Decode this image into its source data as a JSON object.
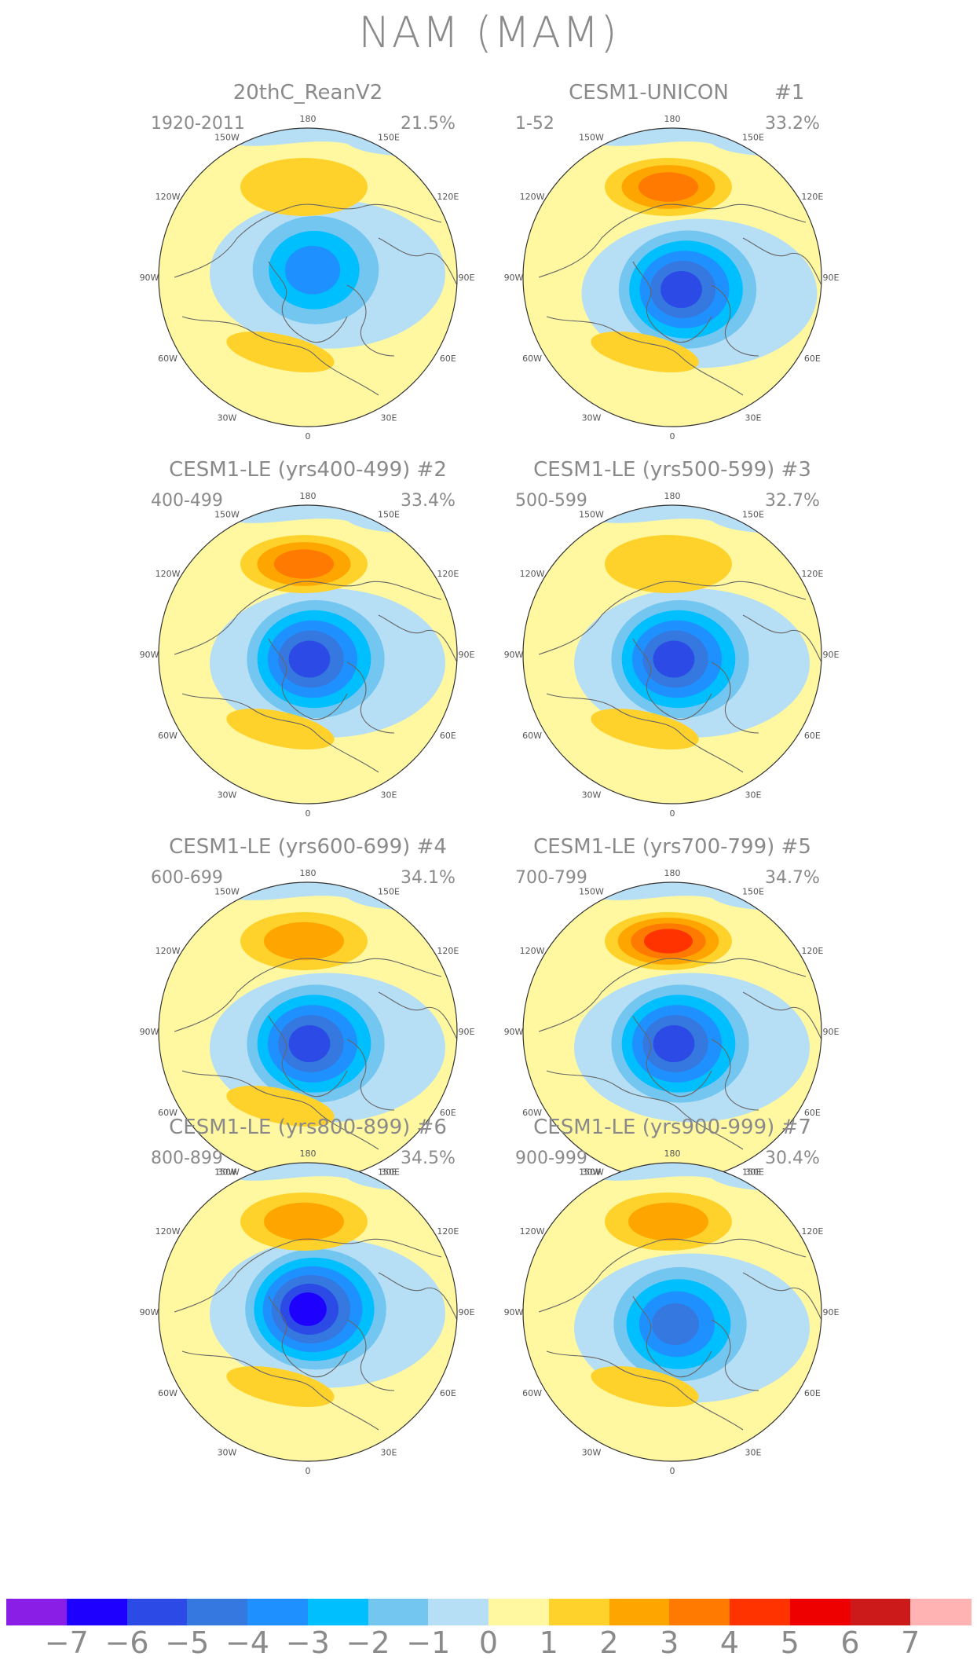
{
  "figure_title": "NAM (MAM)",
  "panels": [
    {
      "title": "20thC_ReanV2",
      "years": "1920-2011",
      "pct": "21.5%",
      "member": "",
      "pattern": {
        "neg_center": [
          0.0,
          -0.18
        ],
        "neg_levels": 3,
        "pos_north_levels": 1,
        "pos_atl_levels": 1
      }
    },
    {
      "title": "CESM1-UNICON",
      "years": "1-52",
      "pct": "33.2%",
      "member": "#1",
      "pattern": {
        "neg_center": [
          0.05,
          -0.05
        ],
        "neg_levels": 5,
        "pos_north_levels": 3,
        "pos_atl_levels": 1
      }
    },
    {
      "title": "CESM1-LE (yrs400-499) #2",
      "years": "400-499",
      "pct": "33.4%",
      "member": "",
      "pattern": {
        "neg_center": [
          0.0,
          -0.1
        ],
        "neg_levels": 5,
        "pos_north_levels": 3,
        "pos_atl_levels": 1
      }
    },
    {
      "title": "CESM1-LE (yrs500-599) #3",
      "years": "500-599",
      "pct": "32.7%",
      "member": "",
      "pattern": {
        "neg_center": [
          0.0,
          -0.1
        ],
        "neg_levels": 5,
        "pos_north_levels": 1,
        "pos_atl_levels": 1
      }
    },
    {
      "title": "CESM1-LE (yrs600-699) #4",
      "years": "600-699",
      "pct": "34.1%",
      "member": "",
      "pattern": {
        "neg_center": [
          0.0,
          -0.05
        ],
        "neg_levels": 5,
        "pos_north_levels": 2,
        "pos_atl_levels": 1
      }
    },
    {
      "title": "CESM1-LE (yrs700-799) #5",
      "years": "700-799",
      "pct": "34.7%",
      "member": "",
      "pattern": {
        "neg_center": [
          0.0,
          -0.05
        ],
        "neg_levels": 5,
        "pos_north_levels": 4,
        "pos_atl_levels": 0
      }
    },
    {
      "title": "CESM1-LE (yrs800-899) #6",
      "years": "800-899",
      "pct": "34.5%",
      "member": "",
      "pattern": {
        "neg_center": [
          0.0,
          -0.15
        ],
        "neg_levels": 6,
        "pos_north_levels": 2,
        "pos_atl_levels": 1
      }
    },
    {
      "title": "CESM1-LE (yrs900-999) #7",
      "years": "900-999",
      "pct": "30.4%",
      "member": "",
      "pattern": {
        "neg_center": [
          0.0,
          -0.05
        ],
        "neg_levels": 4,
        "pos_north_levels": 2,
        "pos_atl_levels": 1
      }
    }
  ],
  "lon_labels": [
    "180",
    "150E",
    "120E",
    "90E",
    "60E",
    "30E",
    "0",
    "30W",
    "60W",
    "90W",
    "120W",
    "150W"
  ],
  "colorbar": {
    "colors": [
      "#8a1ee6",
      "#1e00ff",
      "#2c4ae6",
      "#3478e0",
      "#1e90ff",
      "#00bfff",
      "#73c6f0",
      "#b6dff5",
      "#fff8a0",
      "#ffd22b",
      "#ffa500",
      "#ff7a00",
      "#ff3300",
      "#ee0000",
      "#cc1a1a",
      "#ffb3b3"
    ],
    "labels": [
      "−7",
      "−6",
      "−5",
      "−4",
      "−3",
      "−2",
      "−1",
      "0",
      "1",
      "2",
      "3",
      "4",
      "5",
      "6",
      "7"
    ]
  }
}
